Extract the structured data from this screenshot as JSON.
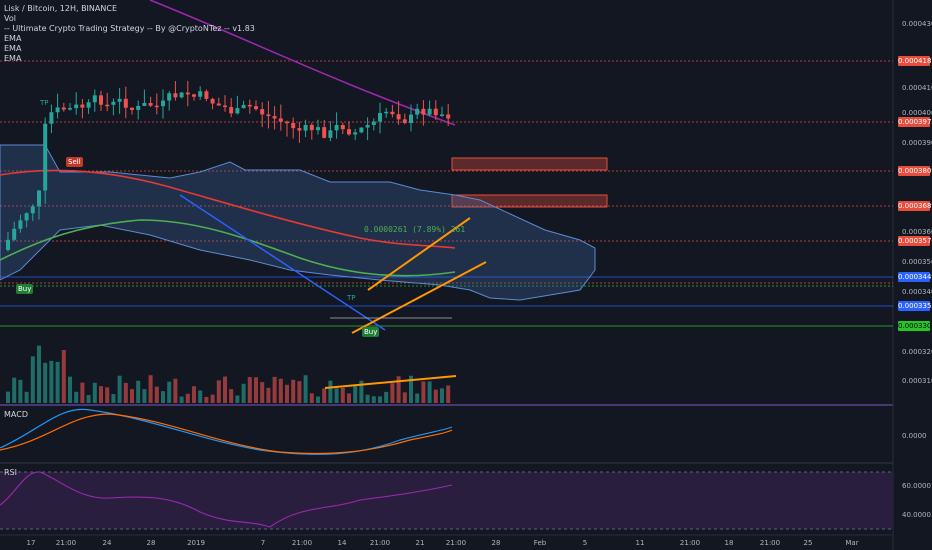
{
  "legend": {
    "title": "Lisk / Bitcoin, 12H, BINANCE",
    "lines": [
      "Vol",
      "-- Ultimate Crypto Trading Strategy -- By @CryptoNTez -- v1.83",
      "EMA",
      "EMA",
      "EMA"
    ]
  },
  "price_axis": [
    "0.0004300",
    "0.0004100",
    "0.0004000",
    "0.0003900",
    "0.0003600",
    "0.0003500",
    "0.0003400",
    "0.0003200",
    "0.0003100"
  ],
  "price_tags": [
    {
      "label": "0.0004187",
      "color": "#e74c3c",
      "text": "#ffffff"
    },
    {
      "label": "0.0003972",
      "color": "#e74c3c",
      "text": "#ffffff"
    },
    {
      "label": "0.0003809",
      "color": "#e74c3c",
      "text": "#ffffff"
    },
    {
      "label": "0.0003689",
      "color": "#e74c3c",
      "text": "#ffffff"
    },
    {
      "label": "0.0003570",
      "color": "#e74c3c",
      "text": "#ffffff"
    },
    {
      "label": "0.0003449",
      "color": "#2962ff",
      "text": "#ffffff"
    },
    {
      "label": "0.0003353",
      "color": "#2962ff",
      "text": "#ffffff"
    },
    {
      "label": "0.0003304",
      "color": "#26c62b",
      "text": "#000000"
    }
  ],
  "time_axis": [
    "17",
    "21:00",
    "24",
    "28",
    "2019",
    "7",
    "21:00",
    "14",
    "21:00",
    "21",
    "21:00",
    "28",
    "Feb",
    "5",
    "11",
    "21:00",
    "18",
    "21:00",
    "25",
    "Mar"
  ],
  "markers": {
    "sell": "Sell",
    "buy1": "Buy",
    "buy2": "Buy",
    "tp1": "TP",
    "tp2": "TP"
  },
  "channel_label": "0.0000261 (7.89%) 261",
  "macd": {
    "label": "MACD",
    "value": "0.0000"
  },
  "rsi": {
    "label": "RSI",
    "value_top": "60.0000",
    "value_bottom": "40.0000"
  },
  "colors": {
    "bg": "#131722",
    "up": "#26a69a",
    "down": "#ef5350",
    "ema_red": "#e53935",
    "ema_green": "#4caf50",
    "ema_purple": "#9c27b0",
    "cloud": "#5b8bd1",
    "channel": "#ff9800"
  }
}
